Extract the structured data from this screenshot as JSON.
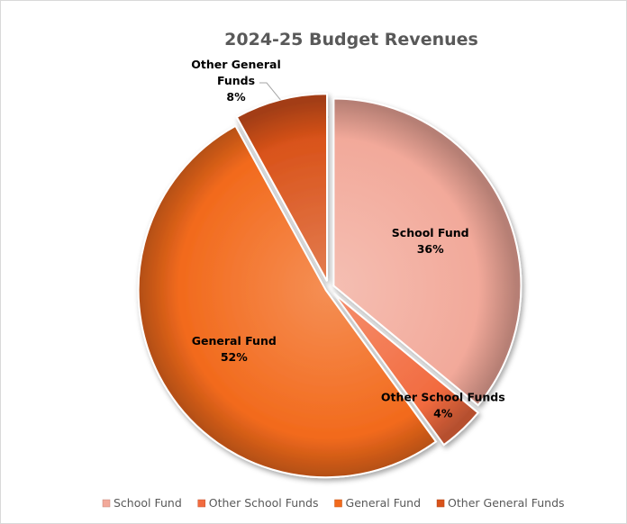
{
  "chart_data": {
    "type": "pie",
    "title": "2024-25 Budget Revenues",
    "categories": [
      "School Fund",
      "Other School Funds",
      "General Fund",
      "Other General Funds"
    ],
    "values": [
      36,
      4,
      52,
      8
    ],
    "value_labels": [
      "36%",
      "4%",
      "52%",
      "8%"
    ],
    "exploded": true,
    "legend_position": "bottom",
    "colors": [
      "#f2a99a",
      "#f26b3f",
      "#f26a1c",
      "#d9531a"
    ]
  }
}
